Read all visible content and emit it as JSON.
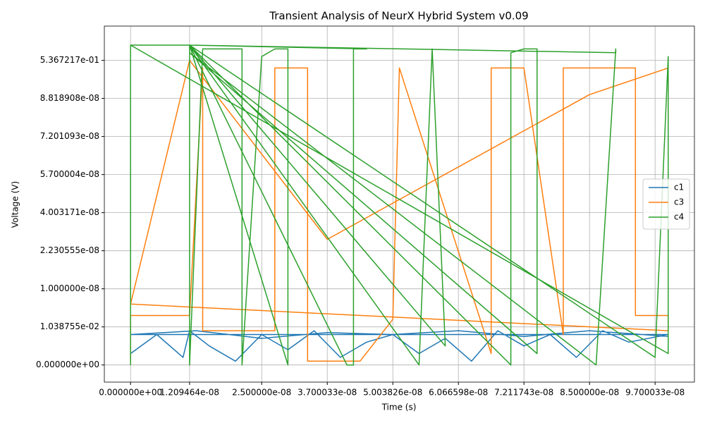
{
  "chart_data": {
    "type": "line",
    "title": "Transient Analysis of NeurX Hybrid System v0.09",
    "x_label": "Time (s)",
    "y_label": "Voltage (V)",
    "xlim": [
      -4,
      86
    ],
    "ylim": [
      -0.45,
      8.9
    ],
    "xticks": [
      {
        "value": 0,
        "label": "0.000000e+00"
      },
      {
        "value": 9,
        "label": "1.209464e-08"
      },
      {
        "value": 20,
        "label": "2.500000e-08"
      },
      {
        "value": 30,
        "label": "3.700033e-08"
      },
      {
        "value": 40,
        "label": "5.003826e-08"
      },
      {
        "value": 50,
        "label": "6.066598e-08"
      },
      {
        "value": 60,
        "label": "7.211743e-08"
      },
      {
        "value": 70,
        "label": "8.500000e-08"
      },
      {
        "value": 80,
        "label": "9.700033e-08"
      }
    ],
    "yticks": [
      {
        "value": 0,
        "label": "0.000000e+00"
      },
      {
        "value": 1,
        "label": "1.038755e-02"
      },
      {
        "value": 2,
        "label": "1.000000e-08"
      },
      {
        "value": 3,
        "label": "2.230555e-08"
      },
      {
        "value": 4,
        "label": "4.003171e-08"
      },
      {
        "value": 5,
        "label": "5.700004e-08"
      },
      {
        "value": 6,
        "label": "7.201093e-08"
      },
      {
        "value": 7,
        "label": "8.818908e-08"
      },
      {
        "value": 8,
        "label": "5.367217e-01"
      }
    ],
    "grid": true,
    "legend": "right",
    "series": [
      {
        "name": "c1",
        "color": "#1f77b4",
        "x": [
          0,
          4,
          8,
          9,
          12,
          16,
          20,
          24,
          28,
          32,
          36,
          40,
          44,
          48,
          52,
          56,
          60,
          64,
          68,
          72,
          76,
          82,
          0,
          10,
          20,
          30,
          40,
          50,
          60,
          70,
          82
        ],
        "values": [
          0.3,
          0.8,
          0.2,
          0.9,
          0.5,
          0.1,
          0.8,
          0.4,
          0.9,
          0.2,
          0.6,
          0.8,
          0.3,
          0.7,
          0.1,
          0.9,
          0.5,
          0.8,
          0.2,
          0.9,
          0.6,
          0.8,
          0.8,
          0.9,
          0.7,
          0.85,
          0.8,
          0.9,
          0.75,
          0.9,
          0.75
        ]
      },
      {
        "name": "c3",
        "color": "#ff7f0e",
        "x": [
          0,
          0,
          9,
          11,
          11,
          22,
          22,
          27,
          27,
          35,
          40,
          41,
          41,
          55,
          55,
          60,
          66,
          66,
          77,
          77,
          82,
          82,
          0,
          9,
          30,
          50,
          70,
          82
        ],
        "values": [
          0.1,
          1.3,
          1.3,
          7.8,
          0.9,
          0.9,
          7.8,
          7.8,
          0.1,
          0.1,
          1.2,
          7.8,
          7.8,
          0.3,
          7.8,
          7.8,
          0.8,
          7.8,
          7.8,
          1.3,
          1.3,
          0.9,
          1.6,
          8.0,
          3.3,
          5.2,
          7.1,
          7.8
        ]
      },
      {
        "name": "c4",
        "color": "#2ca02c",
        "x": [
          0,
          0,
          9,
          9,
          11,
          17,
          17,
          20,
          22,
          24,
          24,
          9,
          33,
          34,
          34,
          36,
          9,
          44,
          46,
          46,
          48,
          9,
          58,
          58,
          60,
          62,
          62,
          9,
          71,
          74,
          74,
          9,
          80,
          82,
          82,
          0
        ],
        "values": [
          0,
          8.4,
          8.4,
          0,
          8.3,
          8.3,
          0,
          8.1,
          8.3,
          8.3,
          0,
          8.4,
          0,
          0,
          8.3,
          8.3,
          8.4,
          0,
          8.3,
          8.3,
          0.5,
          8.4,
          0,
          8.2,
          8.3,
          8.3,
          0.3,
          8.2,
          0,
          8.3,
          8.2,
          8.4,
          0.2,
          8.1,
          0.3,
          8.4
        ]
      }
    ]
  }
}
